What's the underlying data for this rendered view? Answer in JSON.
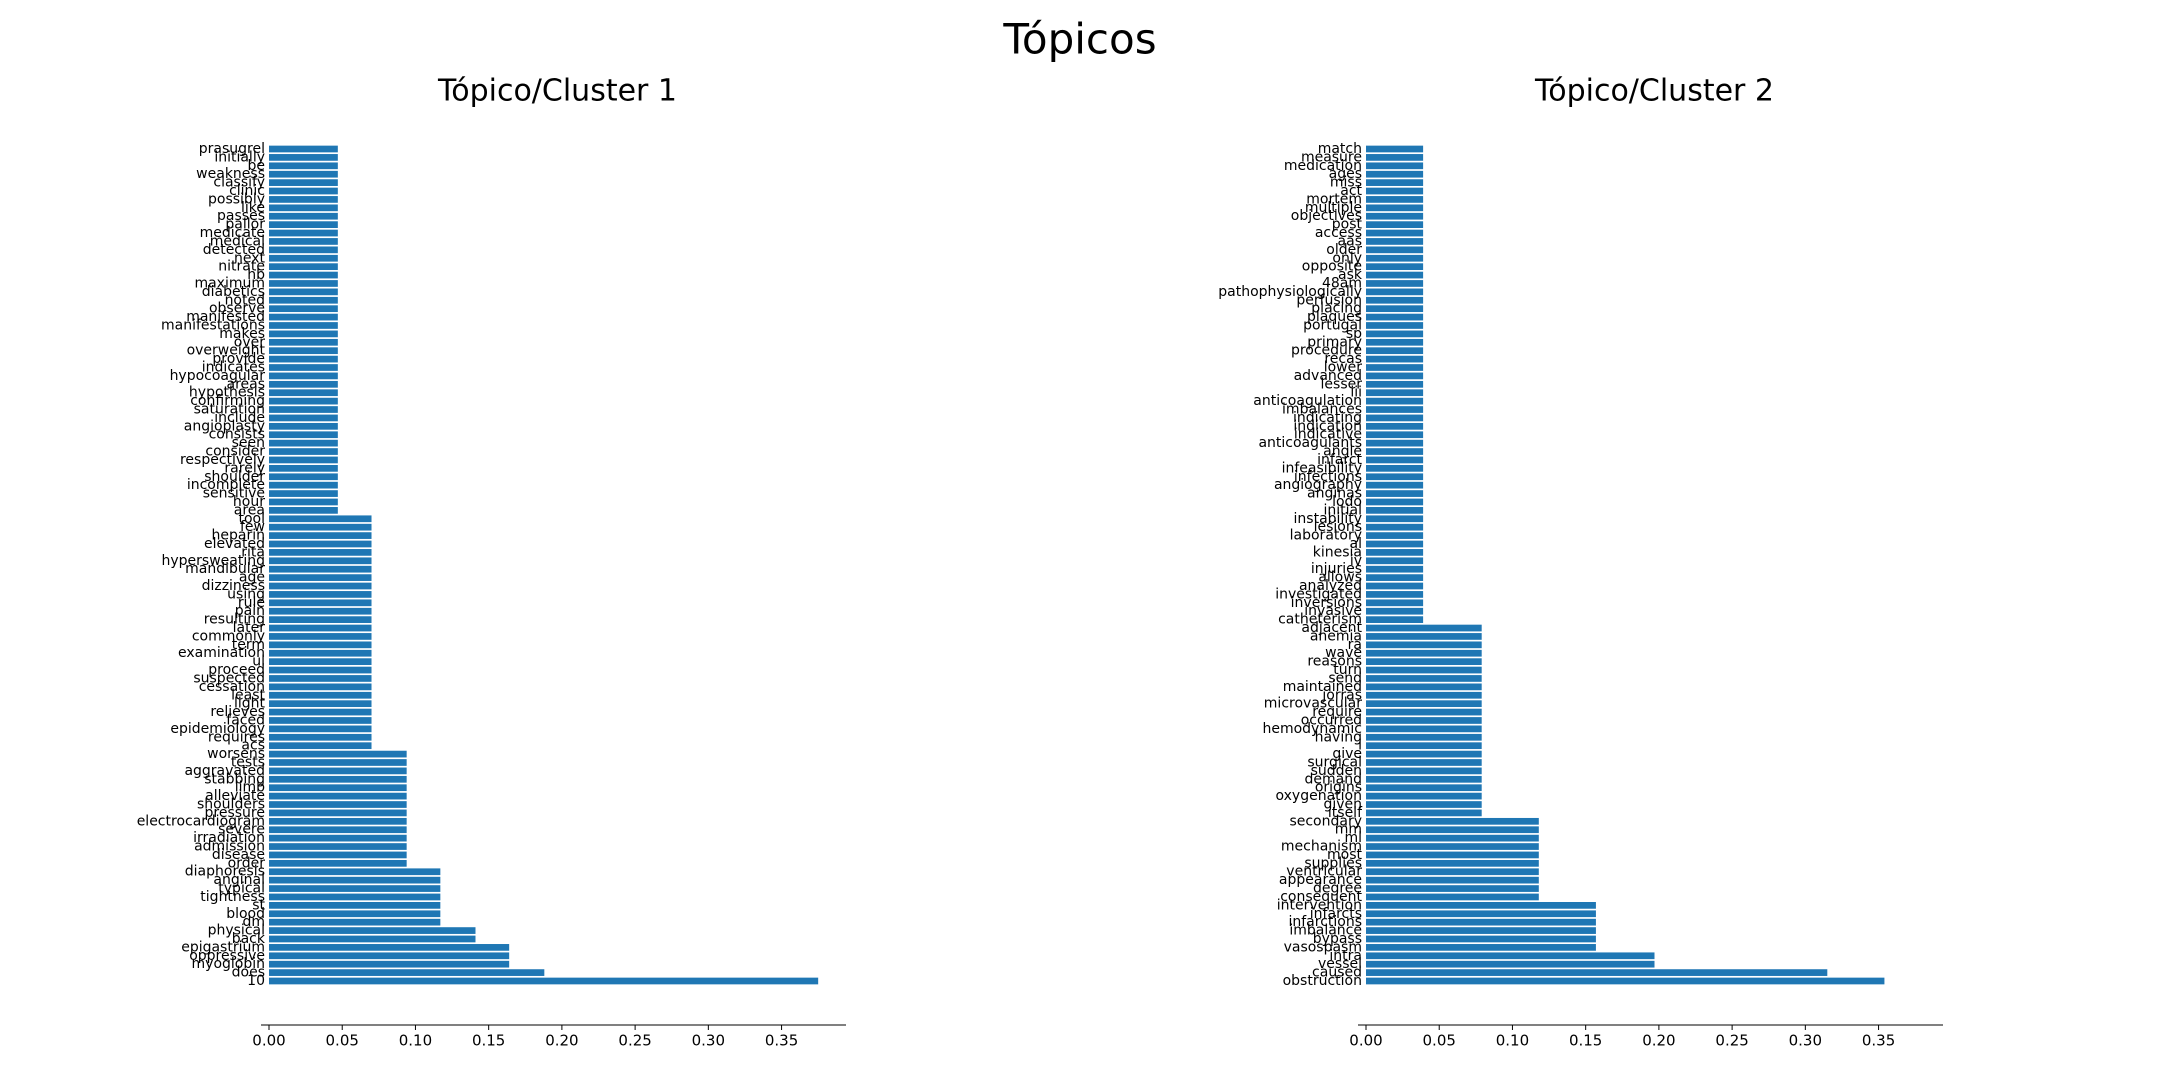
{
  "title": "Tópicos",
  "chart_data": [
    {
      "type": "bar",
      "orientation": "horizontal",
      "title": "Tópico/Cluster 1",
      "color": "#1f77b4",
      "categories": [
        "prasugrel",
        "initially",
        "be",
        "weakness",
        "classify",
        "clinic",
        "possibly",
        "like",
        "passes",
        "pallor",
        "medicate",
        "medical",
        "detected",
        "next",
        "nitrate",
        "hb",
        "maximum",
        "diabetics",
        "noted",
        "observe",
        "manifested",
        "manifestations",
        "makes",
        "over",
        "overweight",
        "provide",
        "indicates",
        "hypocoagular",
        "areas",
        "hypothesis",
        "confirming",
        "saturation",
        "include",
        "angioplasty",
        "consists",
        "seen",
        "consider",
        "respectively",
        "rarely",
        "shoulder",
        "incomplete",
        "sensitive",
        "hour",
        "area",
        "tool",
        "few",
        "heparin",
        "elevated",
        "rita",
        "hypersweating",
        "mandibular",
        "age",
        "dizziness",
        "using",
        "rule",
        "pain",
        "resulting",
        "later",
        "commonly",
        "term",
        "examination",
        "ul",
        "proceed",
        "suspected",
        "cessation",
        "least",
        "light",
        "relieves",
        "faced",
        "epidemiology",
        "requires",
        "acs",
        "worsens",
        "tests",
        "aggravated",
        "stabbing",
        "limb",
        "alleviate",
        "shoulders",
        "pressure",
        "electrocardiogram",
        "severe",
        "irradiation",
        "admission",
        "disease",
        "order",
        "diaphoresis",
        "anginal",
        "typical",
        "tightness",
        "st",
        "blood",
        "dm",
        "physical",
        "back",
        "epigastrium",
        "oppressive",
        "myoglobin",
        "does",
        "10"
      ],
      "values": [
        0.047,
        0.047,
        0.047,
        0.047,
        0.047,
        0.047,
        0.047,
        0.047,
        0.047,
        0.047,
        0.047,
        0.047,
        0.047,
        0.047,
        0.047,
        0.047,
        0.047,
        0.047,
        0.047,
        0.047,
        0.047,
        0.047,
        0.047,
        0.047,
        0.047,
        0.047,
        0.047,
        0.047,
        0.047,
        0.047,
        0.047,
        0.047,
        0.047,
        0.047,
        0.047,
        0.047,
        0.047,
        0.047,
        0.047,
        0.047,
        0.047,
        0.047,
        0.047,
        0.047,
        0.07,
        0.07,
        0.07,
        0.07,
        0.07,
        0.07,
        0.07,
        0.07,
        0.07,
        0.07,
        0.07,
        0.07,
        0.07,
        0.07,
        0.07,
        0.07,
        0.07,
        0.07,
        0.07,
        0.07,
        0.07,
        0.07,
        0.07,
        0.07,
        0.07,
        0.07,
        0.07,
        0.07,
        0.094,
        0.094,
        0.094,
        0.094,
        0.094,
        0.094,
        0.094,
        0.094,
        0.094,
        0.094,
        0.094,
        0.094,
        0.094,
        0.094,
        0.117,
        0.117,
        0.117,
        0.117,
        0.117,
        0.117,
        0.117,
        0.141,
        0.141,
        0.164,
        0.164,
        0.164,
        0.188,
        0.375
      ],
      "xlim": [
        0,
        0.394
      ],
      "xticks": [
        {
          "value": 0,
          "label": "0.00"
        },
        {
          "value": 0.05,
          "label": "0.05"
        },
        {
          "value": 0.1,
          "label": "0.10"
        },
        {
          "value": 0.15,
          "label": "0.15"
        },
        {
          "value": 0.2,
          "label": "0.20"
        },
        {
          "value": 0.25,
          "label": "0.25"
        },
        {
          "value": 0.3,
          "label": "0.30"
        },
        {
          "value": 0.35,
          "label": "0.35"
        }
      ]
    },
    {
      "type": "bar",
      "orientation": "horizontal",
      "title": "Tópico/Cluster 2",
      "color": "#1f77b4",
      "categories": [
        "match",
        "measure",
        "medication",
        "ages",
        "miss",
        "act",
        "mortem",
        "multiple",
        "objectives",
        "post",
        "access",
        "aas",
        "older",
        "only",
        "opposite",
        "ask",
        "48am",
        "pathophysiologically",
        "perfusion",
        "placing",
        "plaques",
        "portugal",
        "sp",
        "primary",
        "procedure",
        "recas",
        "lower",
        "advanced",
        "lesser",
        "iii",
        "anticoagulation",
        "imbalances",
        "indicating",
        "indication",
        "indicative",
        "anticoagulants",
        "angle",
        "infarct",
        "infeasibility",
        "infections",
        "angiography",
        "anginas",
        "lodo",
        "initial",
        "instability",
        "lesions",
        "laboratory",
        "al",
        "kinesia",
        "iv",
        "injuries",
        "allows",
        "analyzed",
        "investigated",
        "inversions",
        "invasive",
        "catheterism",
        "adjacent",
        "anemia",
        "ra",
        "wave",
        "reasons",
        "turn",
        "send",
        "maintained",
        "jorras",
        "microvascular",
        "require",
        "occurred",
        "hemodynamic",
        "having",
        "i",
        "give",
        "surgical",
        "sudden",
        "demand",
        "origins",
        "oxygenation",
        "given",
        "itself",
        "secondary",
        "mm",
        "ml",
        "mechanism",
        "most",
        "supplies",
        "ventricular",
        "appearance",
        "degree",
        "consequent",
        "intervention",
        "infarcts",
        "infarctions",
        "imbalance",
        "bypass",
        "vasospasm",
        "intra",
        "vessel",
        "caused",
        "obstruction"
      ],
      "values": [
        0.039,
        0.039,
        0.039,
        0.039,
        0.039,
        0.039,
        0.039,
        0.039,
        0.039,
        0.039,
        0.039,
        0.039,
        0.039,
        0.039,
        0.039,
        0.039,
        0.039,
        0.039,
        0.039,
        0.039,
        0.039,
        0.039,
        0.039,
        0.039,
        0.039,
        0.039,
        0.039,
        0.039,
        0.039,
        0.039,
        0.039,
        0.039,
        0.039,
        0.039,
        0.039,
        0.039,
        0.039,
        0.039,
        0.039,
        0.039,
        0.039,
        0.039,
        0.039,
        0.039,
        0.039,
        0.039,
        0.039,
        0.039,
        0.039,
        0.039,
        0.039,
        0.039,
        0.039,
        0.039,
        0.039,
        0.039,
        0.039,
        0.079,
        0.079,
        0.079,
        0.079,
        0.079,
        0.079,
        0.079,
        0.079,
        0.079,
        0.079,
        0.079,
        0.079,
        0.079,
        0.079,
        0.079,
        0.079,
        0.079,
        0.079,
        0.079,
        0.079,
        0.079,
        0.079,
        0.079,
        0.118,
        0.118,
        0.118,
        0.118,
        0.118,
        0.118,
        0.118,
        0.118,
        0.118,
        0.118,
        0.157,
        0.157,
        0.157,
        0.157,
        0.157,
        0.157,
        0.197,
        0.197,
        0.315,
        0.354
      ],
      "xlim": [
        0,
        0.394
      ],
      "xticks": [
        {
          "value": 0,
          "label": "0.00"
        },
        {
          "value": 0.05,
          "label": "0.05"
        },
        {
          "value": 0.1,
          "label": "0.10"
        },
        {
          "value": 0.15,
          "label": "0.15"
        },
        {
          "value": 0.2,
          "label": "0.20"
        },
        {
          "value": 0.25,
          "label": "0.25"
        },
        {
          "value": 0.3,
          "label": "0.30"
        },
        {
          "value": 0.35,
          "label": "0.35"
        }
      ]
    }
  ]
}
